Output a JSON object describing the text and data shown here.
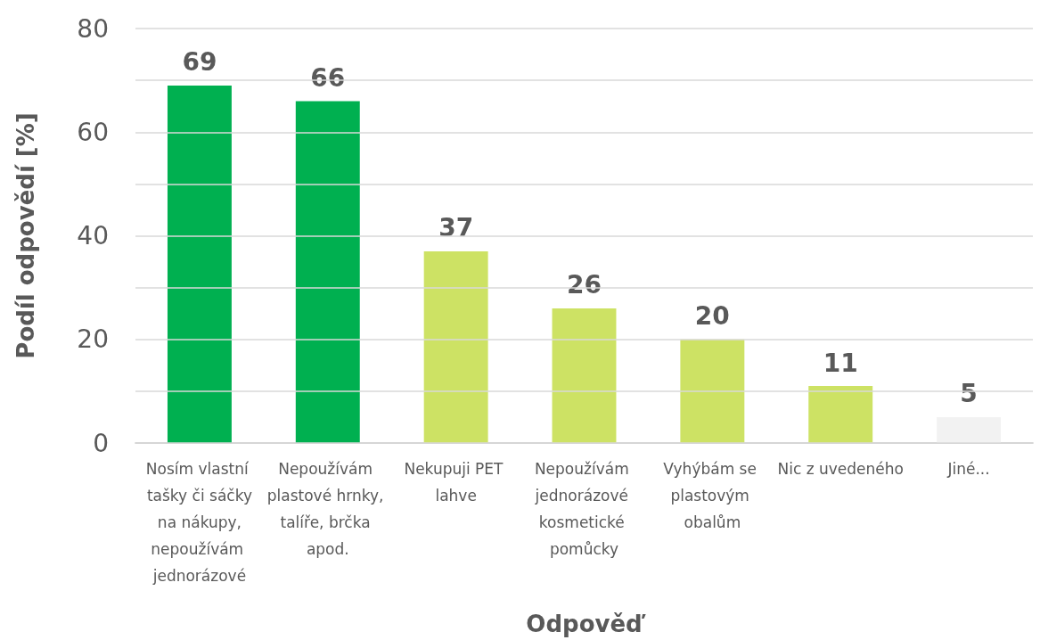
{
  "chart_data": {
    "type": "bar",
    "xlabel": "Odpověď",
    "ylabel": "Podíl odpovědí [%]",
    "categories": [
      "Nosím vlastní tašky či sáčky na nákupy, nepoužívám jednorázové",
      "Nepoužívám plastové hrnky, talíře, brčka apod.",
      "Nekupuji PET lahve",
      "Nepoužívám jednorázové kosmetické pomůcky",
      "Vyhýbám se plastovým obalům",
      "Nic z uvedeného",
      "Jiné..."
    ],
    "values": [
      69,
      66,
      37,
      26,
      20,
      11,
      5
    ],
    "colors": [
      "#00b050",
      "#00b050",
      "#cde264",
      "#cde264",
      "#cde264",
      "#cde264",
      "#f2f2f2"
    ],
    "ylim": [
      0,
      80
    ],
    "yticks": [
      0,
      {
        "value": 10,
        "label": null
      },
      20,
      {
        "value": 30,
        "label": null
      },
      40,
      {
        "value": 50,
        "label": null
      },
      60,
      {
        "value": 70,
        "label": null
      },
      80
    ],
    "grid": "y",
    "data_labels": true
  }
}
